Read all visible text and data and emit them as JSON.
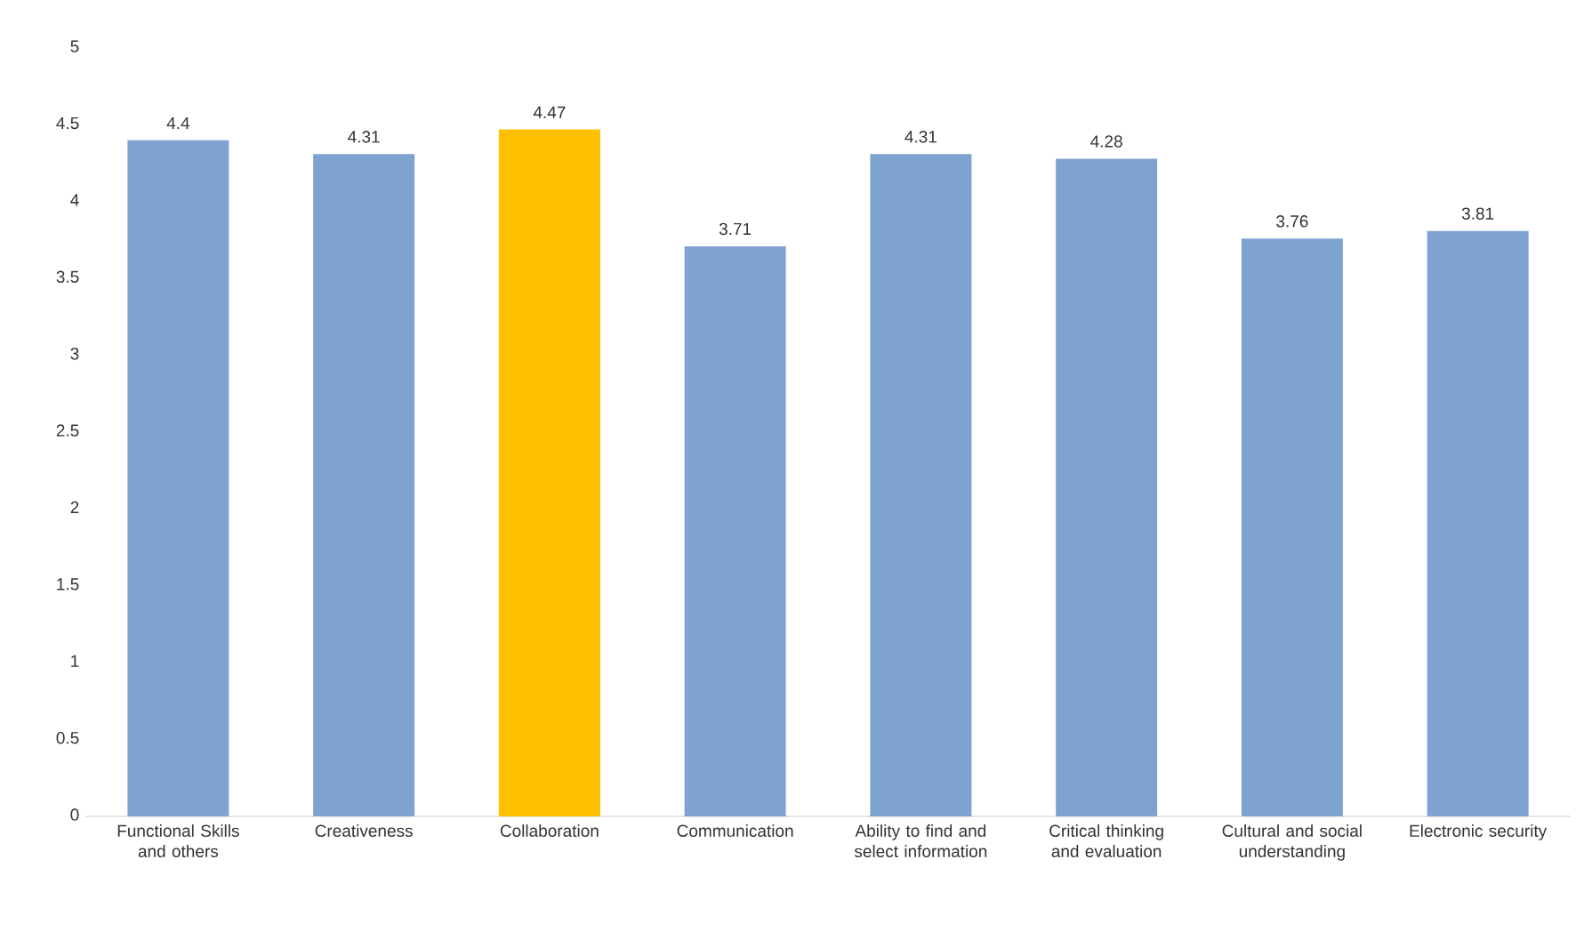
{
  "chart_data": {
    "type": "bar",
    "categories": [
      "Functional Skills and others",
      "Creativeness",
      "Collaboration",
      "Communication",
      "Ability to find and select information",
      "Critical thinking and evaluation",
      "Cultural and social understanding",
      "Electronic security"
    ],
    "values": [
      4.4,
      4.31,
      4.47,
      3.71,
      4.31,
      4.28,
      3.76,
      3.81
    ],
    "colors": [
      "#7fa3d0",
      "#7fa3d0",
      "#ffc000",
      "#7fa3d0",
      "#7fa3d0",
      "#7fa3d0",
      "#7fa3d0",
      "#7fa3d0"
    ],
    "ylim": [
      0,
      5
    ],
    "yticks": [
      0,
      0.5,
      1,
      1.5,
      2,
      2.5,
      3,
      3.5,
      4,
      4.5,
      5
    ],
    "data_labels": true,
    "grid": false
  }
}
